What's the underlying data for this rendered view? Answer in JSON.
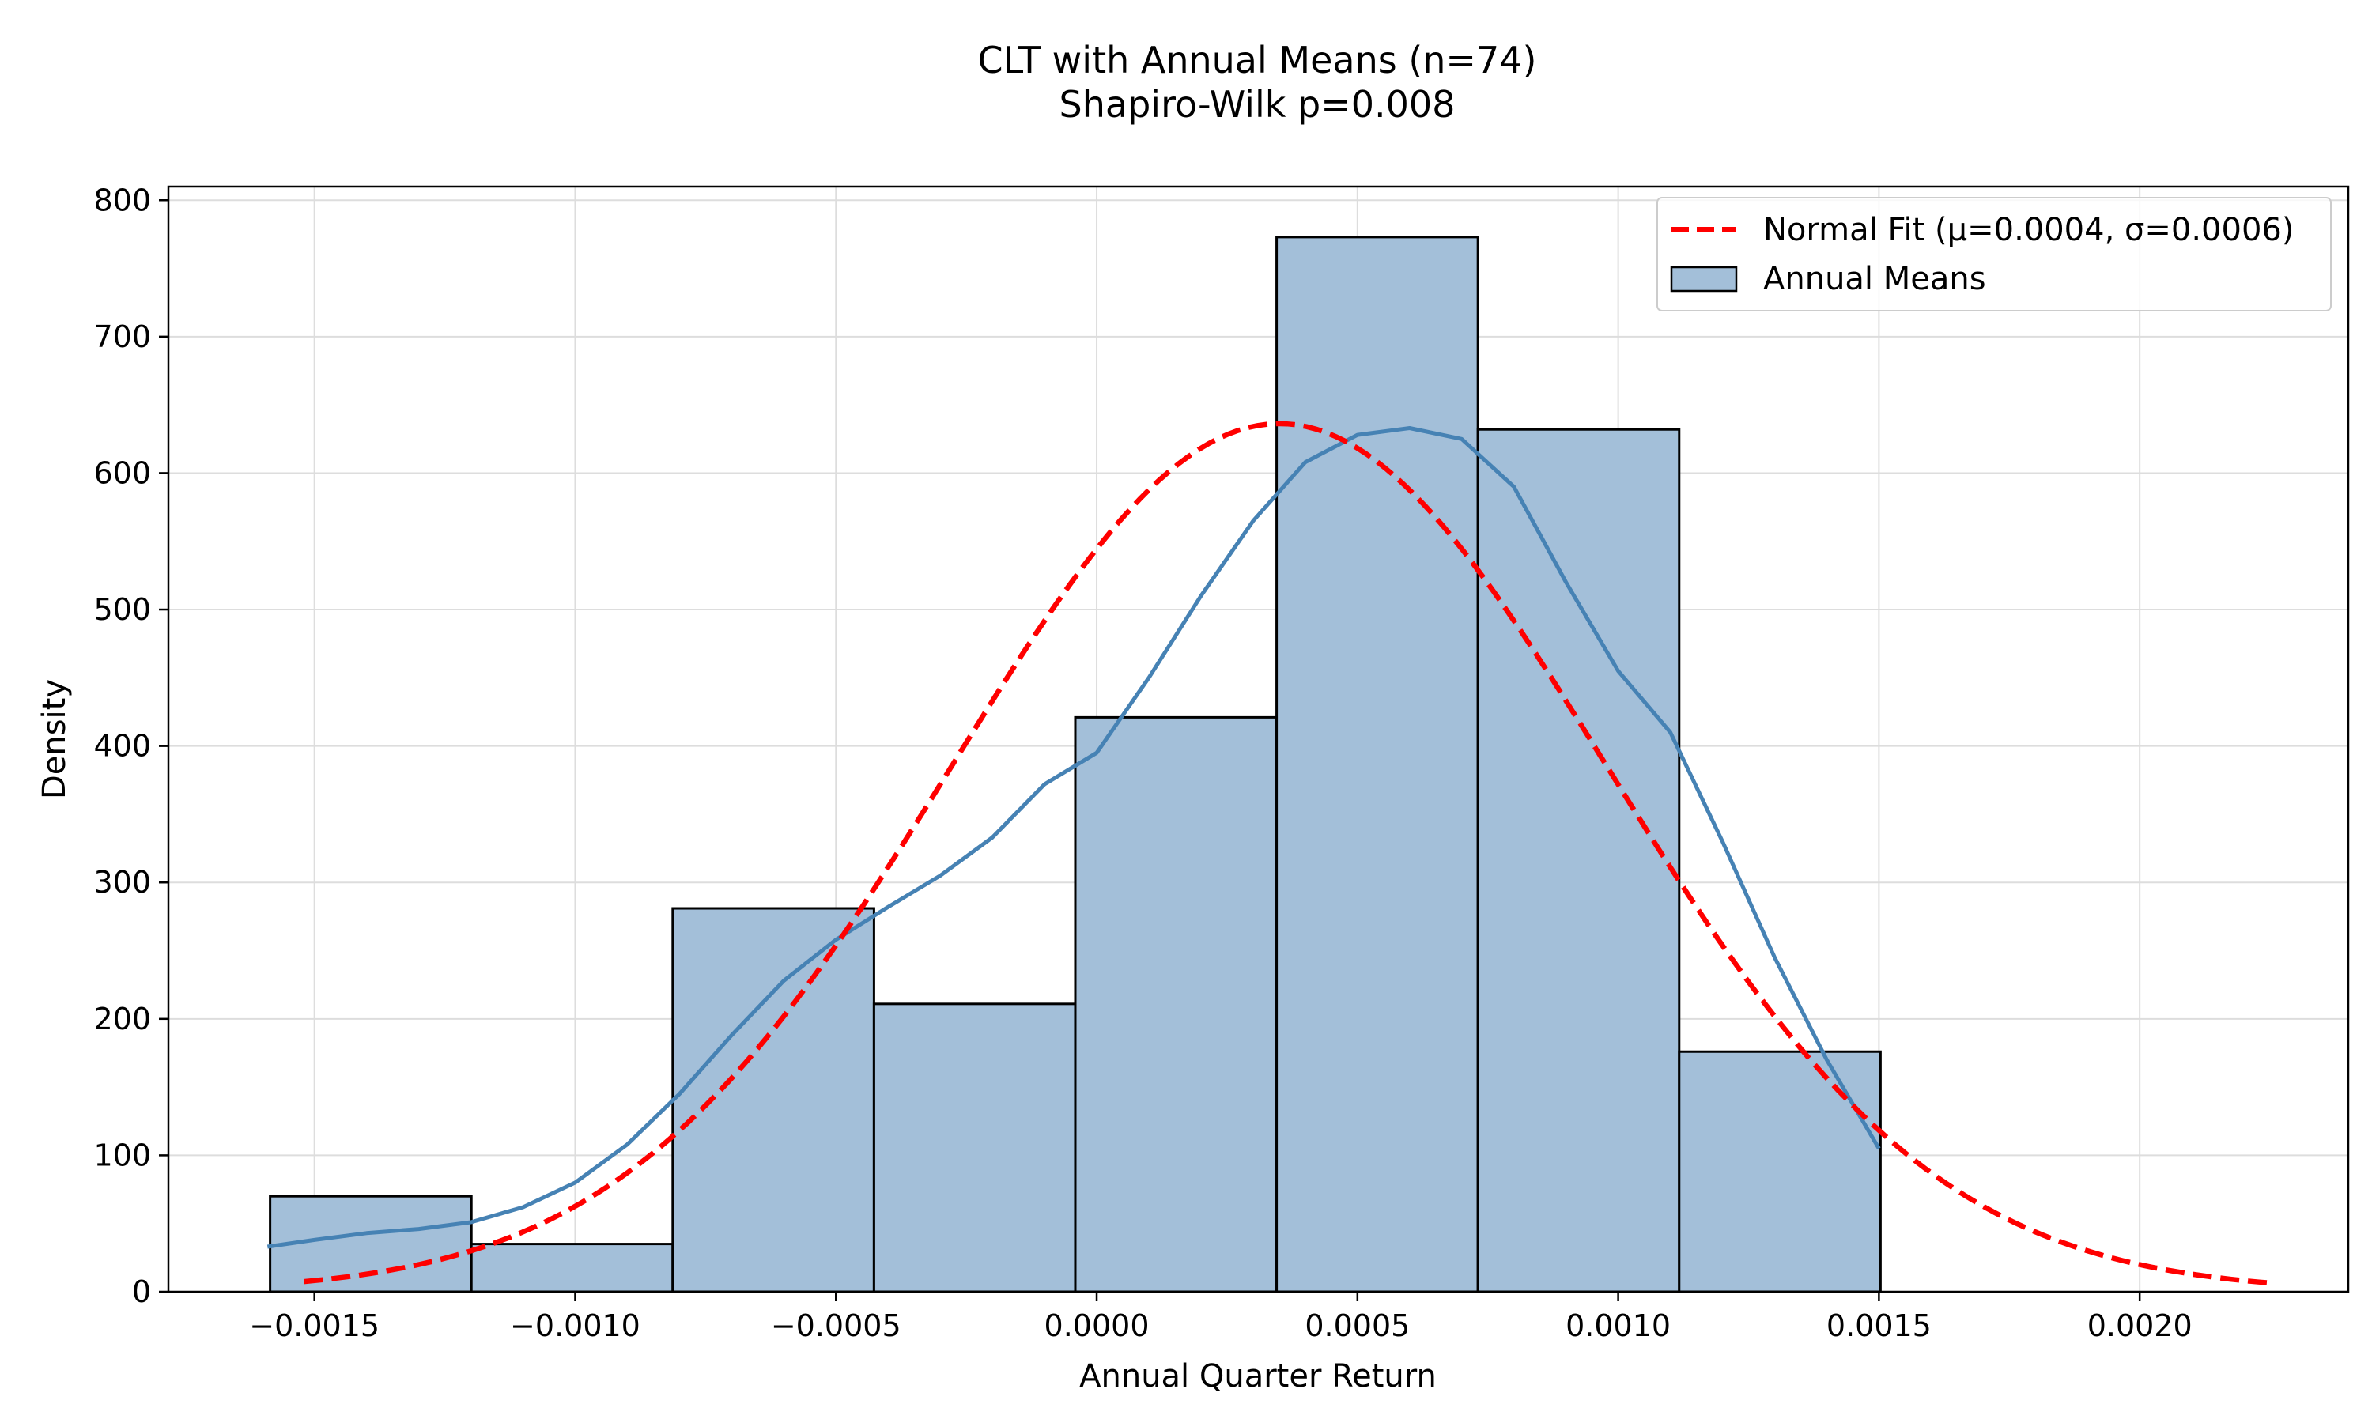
{
  "chart_data": {
    "type": "bar",
    "title": "CLT with Annual Means (n=74)",
    "subtitle": "Shapiro-Wilk p=0.008",
    "xlabel": "Annual Quarter Return",
    "ylabel": "Density",
    "xlim": [
      -0.00178,
      0.0024
    ],
    "ylim": [
      0,
      810
    ],
    "grid": true,
    "legend_position": "top-right",
    "x_ticks": [
      {
        "value": -0.0015,
        "label": "−0.0015"
      },
      {
        "value": -0.001,
        "label": "−0.0010"
      },
      {
        "value": -0.0005,
        "label": "−0.0005"
      },
      {
        "value": 0.0,
        "label": "0.0000"
      },
      {
        "value": 0.0005,
        "label": "0.0005"
      },
      {
        "value": 0.001,
        "label": "0.0010"
      },
      {
        "value": 0.0015,
        "label": "0.0015"
      },
      {
        "value": 0.002,
        "label": "0.0020"
      }
    ],
    "y_ticks": [
      {
        "value": 0,
        "label": "0"
      },
      {
        "value": 100,
        "label": "100"
      },
      {
        "value": 200,
        "label": "200"
      },
      {
        "value": 300,
        "label": "300"
      },
      {
        "value": 400,
        "label": "400"
      },
      {
        "value": 500,
        "label": "500"
      },
      {
        "value": 600,
        "label": "600"
      },
      {
        "value": 700,
        "label": "700"
      },
      {
        "value": 800,
        "label": "800"
      }
    ],
    "histogram": {
      "name": "Annual Means",
      "bin_edges": [
        -0.001585,
        -0.001199,
        -0.000813,
        -0.000427,
        -4.1e-05,
        0.000345,
        0.000731,
        0.001117,
        0.001503
      ],
      "values": [
        70,
        35,
        281,
        211,
        421,
        773,
        632,
        176
      ]
    },
    "kde": {
      "x": [
        -0.00159,
        -0.0015,
        -0.0014,
        -0.0013,
        -0.0012,
        -0.0011,
        -0.001,
        -0.0009,
        -0.0008,
        -0.0007,
        -0.0006,
        -0.0005,
        -0.0004,
        -0.0003,
        -0.0002,
        -0.0001,
        0.0,
        0.0001,
        0.0002,
        0.0003,
        0.0004,
        0.0005,
        0.0006,
        0.0007,
        0.0008,
        0.0009,
        0.001,
        0.0011,
        0.0012,
        0.0013,
        0.0014,
        0.0015
      ],
      "y": [
        33,
        38,
        43,
        46,
        51,
        62,
        80,
        108,
        145,
        188,
        228,
        258,
        282,
        305,
        333,
        372,
        395,
        450,
        510,
        565,
        608,
        628,
        633,
        625,
        590,
        520,
        455,
        410,
        330,
        245,
        170,
        105
      ]
    },
    "normal_fit": {
      "name": "Normal Fit (μ=0.0004, σ=0.0006)",
      "mu": 0.00035,
      "sigma": 0.000627,
      "x_range": [
        -0.00152,
        0.00225
      ]
    },
    "colors": {
      "bar_fill": "#a3bfd9",
      "bar_edge": "#000000",
      "kde_line": "#4682b4",
      "normal_line": "#ff0000",
      "grid": "#dddddd"
    }
  }
}
